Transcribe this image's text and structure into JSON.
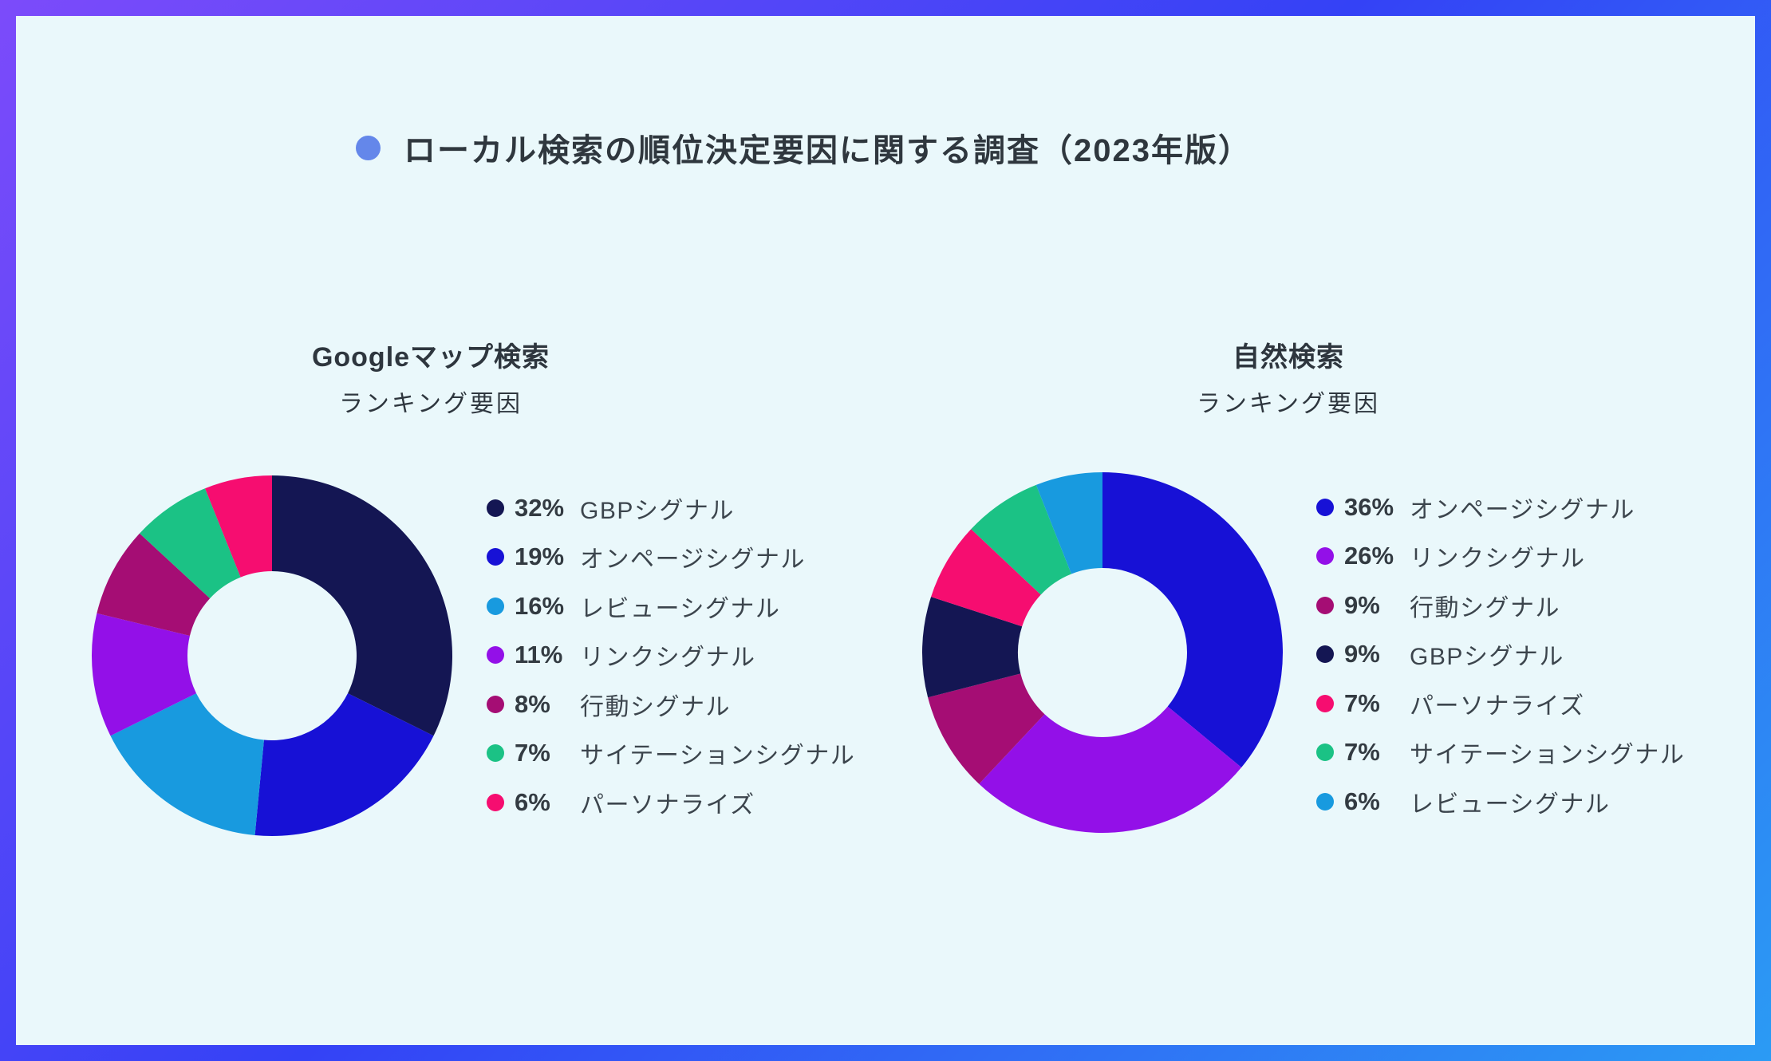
{
  "title": {
    "text": "ローカル検索の順位決定要因に関する調査（2023年版）",
    "bullet_color": "#6487EA"
  },
  "colors": {
    "panel_background": "#EAF8FB",
    "frame_gradient": [
      "#7C4BFA",
      "#3442F6",
      "#2B9BF4"
    ],
    "title_text": "#2F373E",
    "legend_text": "#3C454D"
  },
  "chart_data": [
    {
      "type": "pie",
      "title_main": "Googleマップ検索",
      "title_sub": "ランキング要因",
      "donut_hole_ratio": 0.47,
      "start_angle_deg": 0,
      "direction": "clockwise",
      "legend_position": "right",
      "unit": "%",
      "labels": [
        "GBPシグナル",
        "オンページシグナル",
        "レビューシグナル",
        "リンクシグナル",
        "行動シグナル",
        "サイテーションシグナル",
        "パーソナライズ"
      ],
      "values": [
        32,
        19,
        16,
        11,
        8,
        7,
        6
      ],
      "colors": [
        "#141653",
        "#1711D6",
        "#189ADF",
        "#9310E8",
        "#A50D74",
        "#1BC285",
        "#F60D70"
      ]
    },
    {
      "type": "pie",
      "title_main": "自然検索",
      "title_sub": "ランキング要因",
      "donut_hole_ratio": 0.47,
      "start_angle_deg": 0,
      "direction": "clockwise",
      "legend_position": "right",
      "unit": "%",
      "labels": [
        "オンページシグナル",
        "リンクシグナル",
        "行動シグナル",
        "GBPシグナル",
        "パーソナライズ",
        "サイテーションシグナル",
        "レビューシグナル"
      ],
      "values": [
        36,
        26,
        9,
        9,
        7,
        7,
        6
      ],
      "colors": [
        "#1711D6",
        "#9310E8",
        "#A50D74",
        "#141653",
        "#F60D70",
        "#1BC285",
        "#189ADF"
      ]
    }
  ]
}
